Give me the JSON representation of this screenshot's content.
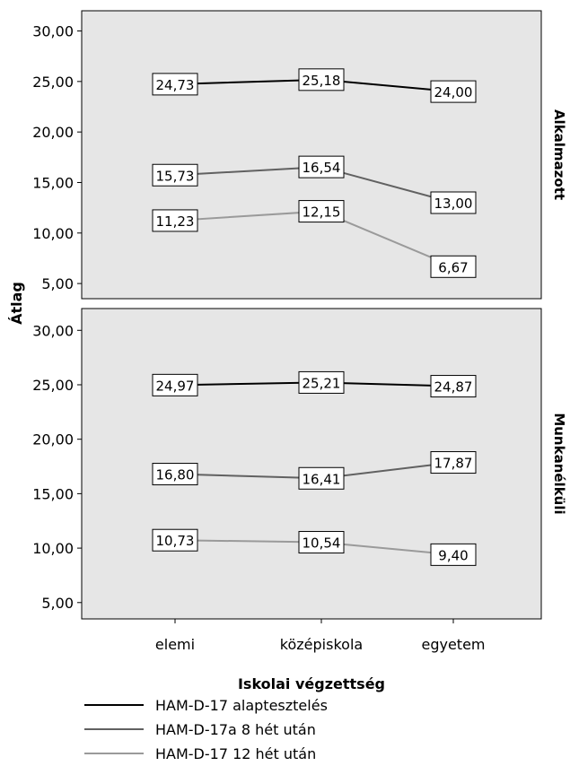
{
  "chart_data": {
    "type": "line",
    "ylabel": "Átlag",
    "xlabel": "Iskolai végzettség",
    "categories": [
      "elemi",
      "középiskola",
      "egyetem"
    ],
    "ylim": [
      3.5,
      32
    ],
    "yticks": [
      "5,00",
      "10,00",
      "15,00",
      "20,00",
      "25,00",
      "30,00"
    ],
    "ytick_values": [
      5,
      10,
      15,
      20,
      25,
      30
    ],
    "grid": false,
    "legend_position": "bottom",
    "series_styles": [
      {
        "name": "HAM-D-17 alaptesztelés",
        "color": "#000000"
      },
      {
        "name": "HAM-D-17a 8 hét után",
        "color": "#616161"
      },
      {
        "name": "HAM-D-17 12 hét után",
        "color": "#9a9a9a"
      }
    ],
    "panels": [
      {
        "label": "Alkalmazott",
        "background": "#e6e6e6",
        "series": [
          {
            "name": "HAM-D-17 alaptesztelés",
            "values": [
              24.73,
              25.18,
              24.0
            ],
            "labels": [
              "24,73",
              "25,18",
              "24,00"
            ]
          },
          {
            "name": "HAM-D-17a 8 hét után",
            "values": [
              15.73,
              16.54,
              13.0
            ],
            "labels": [
              "15,73",
              "16,54",
              "13,00"
            ]
          },
          {
            "name": "HAM-D-17 12 hét után",
            "values": [
              11.23,
              12.15,
              6.67
            ],
            "labels": [
              "11,23",
              "12,15",
              "6,67"
            ]
          }
        ]
      },
      {
        "label": "Munkanélküli",
        "background": "#e6e6e6",
        "series": [
          {
            "name": "HAM-D-17 alaptesztelés",
            "values": [
              24.97,
              25.21,
              24.87
            ],
            "labels": [
              "24,97",
              "25,21",
              "24,87"
            ]
          },
          {
            "name": "HAM-D-17a 8 hét után",
            "values": [
              16.8,
              16.41,
              17.87
            ],
            "labels": [
              "16,80",
              "16,41",
              "17,87"
            ]
          },
          {
            "name": "HAM-D-17 12 hét után",
            "values": [
              10.73,
              10.54,
              9.4
            ],
            "labels": [
              "10,73",
              "10,54",
              "9,40"
            ]
          }
        ]
      }
    ]
  }
}
